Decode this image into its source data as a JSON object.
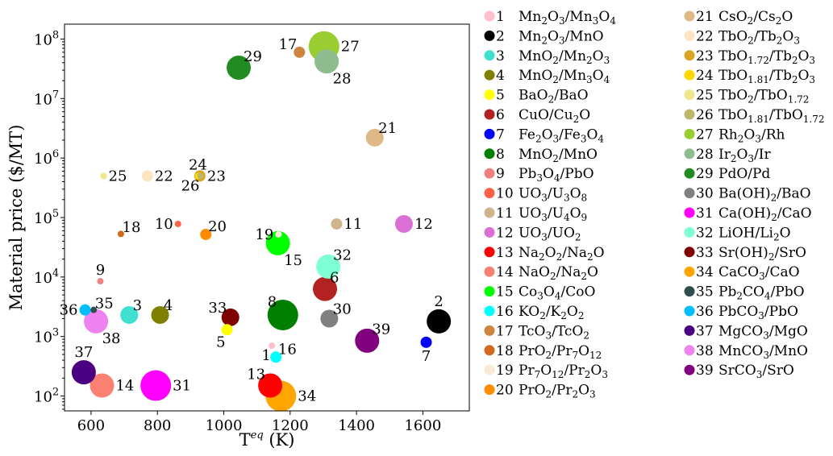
{
  "chart_data": {
    "type": "scatter",
    "xlabel": "T",
    "xlabel_sup": "eq",
    "xlabel_unit": " (K)",
    "ylabel": "Material price ($/MT)",
    "xlim": [
      520,
      1740
    ],
    "ylim_log10": [
      1.75,
      8.25
    ],
    "y_scale": "log",
    "x_ticks": [
      600,
      800,
      1000,
      1200,
      1400,
      1600
    ],
    "y_ticks": [
      {
        "exp": 2,
        "base": "10",
        "sup": "2"
      },
      {
        "exp": 3,
        "base": "10",
        "sup": "3"
      },
      {
        "exp": 4,
        "base": "10",
        "sup": "4"
      },
      {
        "exp": 5,
        "base": "10",
        "sup": "5"
      },
      {
        "exp": 6,
        "base": "10",
        "sup": "6"
      },
      {
        "exp": 7,
        "base": "10",
        "sup": "7"
      },
      {
        "exp": 8,
        "base": "10",
        "sup": "8"
      }
    ],
    "legend_position": "right",
    "series": [
      {
        "id": "1",
        "color": "#ffc0cb",
        "x": 1145,
        "y": 700,
        "size": "tiny",
        "label_pos": "below-left",
        "formula": [
          [
            "Mn",
            ""
          ],
          [
            "2",
            "sub"
          ],
          [
            "O",
            ""
          ],
          [
            "3",
            "sub"
          ],
          [
            "/Mn",
            ""
          ],
          [
            "3",
            "sub"
          ],
          [
            "O",
            ""
          ],
          [
            "4",
            "sub"
          ]
        ]
      },
      {
        "id": "2",
        "color": "#000000",
        "x": 1648,
        "y": 1800,
        "size": "large",
        "label_pos": "above",
        "formula": [
          [
            "Mn",
            ""
          ],
          [
            "2",
            "sub"
          ],
          [
            "O",
            ""
          ],
          [
            "3",
            "sub"
          ],
          [
            "/MnO",
            ""
          ]
        ]
      },
      {
        "id": "3",
        "color": "#40e0d0",
        "x": 715,
        "y": 2300,
        "size": "medium",
        "label_pos": "above-right",
        "formula": [
          [
            "MnO",
            ""
          ],
          [
            "2",
            "sub"
          ],
          [
            "/Mn",
            ""
          ],
          [
            "2",
            "sub"
          ],
          [
            "O",
            ""
          ],
          [
            "3",
            "sub"
          ]
        ]
      },
      {
        "id": "4",
        "color": "#808000",
        "x": 808,
        "y": 2300,
        "size": "medium",
        "label_pos": "above-right",
        "formula": [
          [
            "MnO",
            ""
          ],
          [
            "2",
            "sub"
          ],
          [
            "/Mn",
            ""
          ],
          [
            "3",
            "sub"
          ],
          [
            "O",
            ""
          ],
          [
            "4",
            "sub"
          ]
        ]
      },
      {
        "id": "5",
        "color": "#ffff00",
        "x": 1010,
        "y": 1300,
        "size": "small",
        "label_pos": "below-left",
        "formula": [
          [
            "BaO",
            ""
          ],
          [
            "2",
            "sub"
          ],
          [
            "/BaO",
            ""
          ]
        ]
      },
      {
        "id": "6",
        "color": "#b22222",
        "x": 1305,
        "y": 6300,
        "size": "large",
        "label_pos": "above-right",
        "formula": [
          [
            "CuO/Cu",
            ""
          ],
          [
            "2",
            "sub"
          ],
          [
            "O",
            ""
          ]
        ]
      },
      {
        "id": "7",
        "color": "#0000ff",
        "x": 1610,
        "y": 800,
        "size": "small",
        "label_pos": "below",
        "formula": [
          [
            "Fe",
            ""
          ],
          [
            "2",
            "sub"
          ],
          [
            "O",
            ""
          ],
          [
            "3",
            "sub"
          ],
          [
            "/Fe",
            ""
          ],
          [
            "3",
            "sub"
          ],
          [
            "O",
            ""
          ],
          [
            "4",
            "sub"
          ]
        ]
      },
      {
        "id": "8",
        "color": "#008000",
        "x": 1178,
        "y": 2300,
        "size": "xlarge",
        "label_pos": "above-left",
        "formula": [
          [
            "MnO",
            ""
          ],
          [
            "2",
            "sub"
          ],
          [
            "/MnO",
            ""
          ]
        ]
      },
      {
        "id": "9",
        "color": "#f08080",
        "x": 628,
        "y": 8500,
        "size": "tiny",
        "label_pos": "above",
        "formula": [
          [
            "Pb",
            ""
          ],
          [
            "3",
            "sub"
          ],
          [
            "O",
            ""
          ],
          [
            "4",
            "sub"
          ],
          [
            "/PbO",
            ""
          ]
        ]
      },
      {
        "id": "10",
        "color": "#ff6347",
        "x": 862,
        "y": 78000,
        "size": "tiny",
        "label_pos": "left",
        "formula": [
          [
            "UO",
            ""
          ],
          [
            "3",
            "sub"
          ],
          [
            "/U",
            ""
          ],
          [
            "3",
            "sub"
          ],
          [
            "O",
            ""
          ],
          [
            "8",
            "sub"
          ]
        ]
      },
      {
        "id": "11",
        "color": "#d2b48c",
        "x": 1340,
        "y": 78000,
        "size": "small",
        "label_pos": "right",
        "formula": [
          [
            "UO",
            ""
          ],
          [
            "3",
            "sub"
          ],
          [
            "/U",
            ""
          ],
          [
            "4",
            "sub"
          ],
          [
            "O",
            ""
          ],
          [
            "9",
            "sub"
          ]
        ]
      },
      {
        "id": "12",
        "color": "#da70d6",
        "x": 1543,
        "y": 78000,
        "size": "medium",
        "label_pos": "right",
        "formula": [
          [
            "UO",
            ""
          ],
          [
            "3",
            "sub"
          ],
          [
            "/UO",
            ""
          ],
          [
            "2",
            "sub"
          ]
        ]
      },
      {
        "id": "13",
        "color": "#ff0000",
        "x": 1140,
        "y": 150,
        "size": "large",
        "label_pos": "above-left",
        "formula": [
          [
            "Na",
            ""
          ],
          [
            "2",
            "sub"
          ],
          [
            "O",
            ""
          ],
          [
            "2",
            "sub"
          ],
          [
            "/Na",
            ""
          ],
          [
            "2",
            "sub"
          ],
          [
            "O",
            ""
          ]
        ]
      },
      {
        "id": "14",
        "color": "#fa8072",
        "x": 633,
        "y": 150,
        "size": "large",
        "label_pos": "right",
        "formula": [
          [
            "NaO",
            ""
          ],
          [
            "2",
            "sub"
          ],
          [
            "/Na",
            ""
          ],
          [
            "2",
            "sub"
          ],
          [
            "O",
            ""
          ]
        ]
      },
      {
        "id": "15",
        "color": "#00ff00",
        "x": 1163,
        "y": 37000,
        "size": "large",
        "label_pos": "below-right",
        "formula": [
          [
            "Co",
            ""
          ],
          [
            "3",
            "sub"
          ],
          [
            "O",
            ""
          ],
          [
            "4",
            "sub"
          ],
          [
            "/CoO",
            ""
          ]
        ]
      },
      {
        "id": "16",
        "color": "#00ffff",
        "x": 1157,
        "y": 450,
        "size": "small",
        "label_pos": "above-right",
        "formula": [
          [
            "KO",
            ""
          ],
          [
            "2",
            "sub"
          ],
          [
            "/K",
            ""
          ],
          [
            "2",
            "sub"
          ],
          [
            "O",
            ""
          ],
          [
            "2",
            "sub"
          ]
        ]
      },
      {
        "id": "17",
        "color": "#cd853f",
        "x": 1228,
        "y": 60000000,
        "size": "small",
        "label_pos": "above-left",
        "formula": [
          [
            "TcO",
            ""
          ],
          [
            "3",
            "sub"
          ],
          [
            "/TcO",
            ""
          ],
          [
            "2",
            "sub"
          ]
        ]
      },
      {
        "id": "18",
        "color": "#d2691e",
        "x": 690,
        "y": 53000,
        "size": "tiny",
        "label_pos": "above-right",
        "formula": [
          [
            "PrO",
            ""
          ],
          [
            "2",
            "sub"
          ],
          [
            "/Pr",
            ""
          ],
          [
            "7",
            "sub"
          ],
          [
            "O",
            ""
          ],
          [
            "12",
            "sub"
          ]
        ]
      },
      {
        "id": "19",
        "color": "#faebd7",
        "x": 1165,
        "y": 52000,
        "size": "tiny",
        "label_pos": "left",
        "formula": [
          [
            "Pr",
            ""
          ],
          [
            "7",
            "sub"
          ],
          [
            "O",
            ""
          ],
          [
            "12",
            "sub"
          ],
          [
            "/Pr",
            ""
          ],
          [
            "2",
            "sub"
          ],
          [
            "O",
            ""
          ],
          [
            "3",
            "sub"
          ]
        ]
      },
      {
        "id": "20",
        "color": "#ff8c00",
        "x": 946,
        "y": 52000,
        "size": "small",
        "label_pos": "above-right",
        "formula": [
          [
            "PrO",
            ""
          ],
          [
            "2",
            "sub"
          ],
          [
            "/Pr",
            ""
          ],
          [
            "2",
            "sub"
          ],
          [
            "O",
            ""
          ],
          [
            "3",
            "sub"
          ]
        ]
      },
      {
        "id": "21",
        "color": "#deb887",
        "x": 1455,
        "y": 2200000,
        "size": "medium",
        "label_pos": "above-right",
        "formula": [
          [
            "CsO",
            ""
          ],
          [
            "2",
            "sub"
          ],
          [
            "/Cs",
            ""
          ],
          [
            "2",
            "sub"
          ],
          [
            "O",
            ""
          ]
        ]
      },
      {
        "id": "22",
        "color": "#ffe4c4",
        "x": 770,
        "y": 500000,
        "size": "small",
        "label_pos": "right",
        "formula": [
          [
            "TbO",
            ""
          ],
          [
            "2",
            "sub"
          ],
          [
            "/Tb",
            ""
          ],
          [
            "2",
            "sub"
          ],
          [
            "O",
            ""
          ],
          [
            "3",
            "sub"
          ]
        ]
      },
      {
        "id": "23",
        "color": "#daa520",
        "x": 928,
        "y": 500000,
        "size": "small",
        "label_pos": "right",
        "formula": [
          [
            "TbO",
            ""
          ],
          [
            "1.72",
            "sub"
          ],
          [
            "/Tb",
            ""
          ],
          [
            "2",
            "sub"
          ],
          [
            "O",
            ""
          ],
          [
            "3",
            "sub"
          ]
        ]
      },
      {
        "id": "24",
        "color": "#ffd700",
        "x": 922,
        "y": 500000,
        "size": "tiny",
        "label_pos": "above",
        "formula": [
          [
            "TbO",
            ""
          ],
          [
            "1.81",
            "sub"
          ],
          [
            "/Tb",
            ""
          ],
          [
            "2",
            "sub"
          ],
          [
            "O",
            ""
          ],
          [
            "3",
            "sub"
          ]
        ]
      },
      {
        "id": "25",
        "color": "#f0e68c",
        "x": 638,
        "y": 500000,
        "size": "tiny",
        "label_pos": "right",
        "formula": [
          [
            "TbO",
            ""
          ],
          [
            "2",
            "sub"
          ],
          [
            "/TbO",
            ""
          ],
          [
            "1.72",
            "sub"
          ]
        ]
      },
      {
        "id": "26",
        "color": "#bdb76b",
        "x": 930,
        "y": 500000,
        "size": "tiny",
        "label_pos": "below-left",
        "formula": [
          [
            "TbO",
            ""
          ],
          [
            "1.81",
            "sub"
          ],
          [
            "/TbO",
            ""
          ],
          [
            "1.72",
            "sub"
          ]
        ]
      },
      {
        "id": "27",
        "color": "#9acd32",
        "x": 1302,
        "y": 75000000,
        "size": "xlarge",
        "label_pos": "right",
        "formula": [
          [
            "Rh",
            ""
          ],
          [
            "2",
            "sub"
          ],
          [
            "O",
            ""
          ],
          [
            "3",
            "sub"
          ],
          [
            "/Rh",
            ""
          ]
        ]
      },
      {
        "id": "28",
        "color": "#8fbc8f",
        "x": 1310,
        "y": 42000000,
        "size": "large",
        "label_pos": "below-right",
        "formula": [
          [
            "Ir",
            ""
          ],
          [
            "2",
            "sub"
          ],
          [
            "O",
            ""
          ],
          [
            "3",
            "sub"
          ],
          [
            "/Ir",
            ""
          ]
        ]
      },
      {
        "id": "29",
        "color": "#228b22",
        "x": 1045,
        "y": 33000000,
        "size": "large",
        "label_pos": "above-right",
        "formula": [
          [
            "PdO/Pd",
            ""
          ]
        ]
      },
      {
        "id": "30",
        "color": "#808080",
        "x": 1318,
        "y": 2000,
        "size": "medium",
        "label_pos": "above-right",
        "formula": [
          [
            "Ba(OH)",
            ""
          ],
          [
            "2",
            "sub"
          ],
          [
            "/BaO",
            ""
          ]
        ]
      },
      {
        "id": "31",
        "color": "#ff00ff",
        "x": 795,
        "y": 150,
        "size": "xlarge",
        "label_pos": "right",
        "formula": [
          [
            "Ca(OH)",
            ""
          ],
          [
            "2",
            "sub"
          ],
          [
            "/CaO",
            ""
          ]
        ]
      },
      {
        "id": "32",
        "color": "#7fffd4",
        "x": 1315,
        "y": 15000,
        "size": "large",
        "label_pos": "above-right",
        "formula": [
          [
            "LiOH/Li",
            ""
          ],
          [
            "2",
            "sub"
          ],
          [
            "O",
            ""
          ]
        ]
      },
      {
        "id": "33",
        "color": "#800000",
        "x": 1020,
        "y": 2100,
        "size": "medium",
        "label_pos": "above-left",
        "formula": [
          [
            "Sr(OH)",
            ""
          ],
          [
            "2",
            "sub"
          ],
          [
            "/SrO",
            ""
          ]
        ]
      },
      {
        "id": "34",
        "color": "#ffa500",
        "x": 1172,
        "y": 100,
        "size": "xlarge",
        "label_pos": "right",
        "formula": [
          [
            "CaCO",
            ""
          ],
          [
            "3",
            "sub"
          ],
          [
            "/CaO",
            ""
          ]
        ]
      },
      {
        "id": "35",
        "color": "#2f4f4f",
        "x": 608,
        "y": 2800,
        "size": "tiny",
        "label_pos": "above-right",
        "formula": [
          [
            "Pb",
            ""
          ],
          [
            "2",
            "sub"
          ],
          [
            "CO",
            ""
          ],
          [
            "4",
            "sub"
          ],
          [
            "/PbO",
            ""
          ]
        ]
      },
      {
        "id": "36",
        "color": "#00bfff",
        "x": 582,
        "y": 2800,
        "size": "small",
        "label_pos": "left",
        "formula": [
          [
            "PbCO",
            ""
          ],
          [
            "3",
            "sub"
          ],
          [
            "/PbO",
            ""
          ]
        ]
      },
      {
        "id": "37",
        "color": "#4b0082",
        "x": 578,
        "y": 250,
        "size": "large",
        "label_pos": "above",
        "formula": [
          [
            "MgCO",
            ""
          ],
          [
            "3",
            "sub"
          ],
          [
            "/MgO",
            ""
          ]
        ]
      },
      {
        "id": "38",
        "color": "#ee82ee",
        "x": 615,
        "y": 1800,
        "size": "large",
        "label_pos": "below-right",
        "formula": [
          [
            "MnCO",
            ""
          ],
          [
            "3",
            "sub"
          ],
          [
            "/MnO",
            ""
          ]
        ]
      },
      {
        "id": "39",
        "color": "#800080",
        "x": 1432,
        "y": 850,
        "size": "large",
        "label_pos": "above-right",
        "formula": [
          [
            "SrCO",
            ""
          ],
          [
            "3",
            "sub"
          ],
          [
            "/SrO",
            ""
          ]
        ]
      }
    ]
  }
}
